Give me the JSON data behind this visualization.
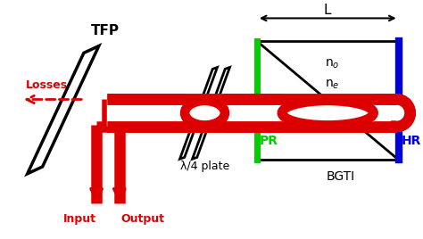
{
  "fig_width": 4.74,
  "fig_height": 2.68,
  "dpi": 100,
  "red_color": "#dd0000",
  "green_color": "#00cc00",
  "blue_color": "#0000dd",
  "black_color": "#000000",
  "white_color": "#ffffff",
  "tfp_label": "TFP",
  "losses_label": "Losses",
  "input_label": "Input",
  "output_label": "Output",
  "quarter_label": "λ/4 plate",
  "bgti_label": "BGTI",
  "pr_label": "PR",
  "hr_label": "HR",
  "no_label": "n$_o$",
  "ne_label": "n$_e$",
  "L_label": "L",
  "xlim": [
    0,
    10
  ],
  "ylim": [
    0,
    5.6
  ]
}
